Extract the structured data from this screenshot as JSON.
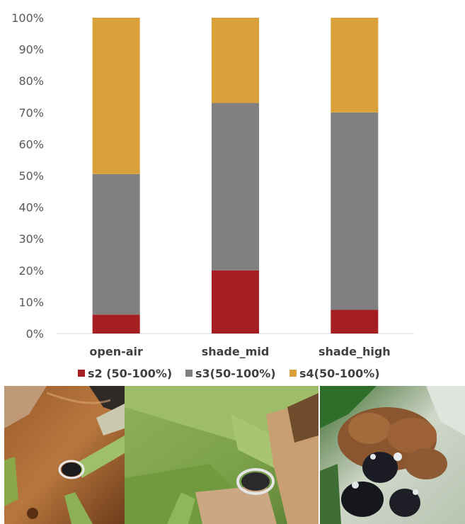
{
  "chart_data": {
    "type": "bar",
    "stacked": true,
    "categories": [
      "open-air",
      "shade_mid",
      "shade_high"
    ],
    "series": [
      {
        "name": "s2 (50-100%)",
        "color": "#a51e22",
        "values": [
          6,
          20,
          7.5
        ]
      },
      {
        "name": "s3(50-100%)",
        "color": "#808080",
        "values": [
          44.5,
          53,
          62.5
        ]
      },
      {
        "name": "s4(50-100%)",
        "color": "#daa13a",
        "values": [
          49.5,
          27,
          30
        ]
      }
    ],
    "y_ticks": [
      "0%",
      "10%",
      "20%",
      "30%",
      "40%",
      "50%",
      "60%",
      "70%",
      "80%",
      "90%",
      "100%"
    ],
    "ylim": [
      0,
      100
    ],
    "grid": false,
    "legend_position": "bottom",
    "title": "",
    "xlabel": "",
    "ylabel": ""
  },
  "photos": [
    {
      "icon": "plant-stem-scale-insect-photo-brown"
    },
    {
      "icon": "plant-stem-scale-insect-photo-green"
    },
    {
      "icon": "scale-insect-cluster-photo"
    }
  ]
}
